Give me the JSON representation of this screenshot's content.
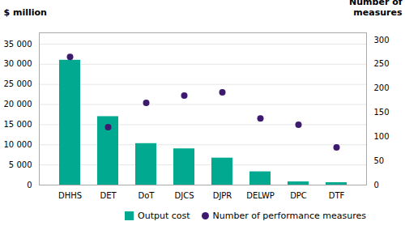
{
  "chart_data": {
    "type": "bar",
    "categories": [
      "DHHS",
      "DET",
      "DoT",
      "DJCS",
      "DJPR",
      "DELWP",
      "DPC",
      "DTF"
    ],
    "series": [
      {
        "name": "Output cost",
        "type": "bar",
        "color": "#00A98F",
        "values": [
          31000,
          17000,
          10300,
          9000,
          6700,
          3300,
          800,
          600
        ]
      },
      {
        "name": "Number of performance measures",
        "type": "scatter",
        "axis": "y2",
        "color": "#3D1A6E",
        "values": [
          265,
          120,
          170,
          185,
          192,
          138,
          125,
          78
        ]
      }
    ],
    "ylabel": "$ million",
    "y2label": "Number of\nmeasures",
    "ylim": [
      0,
      37800
    ],
    "yticks": [
      0,
      {
        "value": 5000,
        "label": "5 000"
      },
      {
        "value": 10000,
        "label": "10 000"
      },
      {
        "value": 15000,
        "label": "15 000"
      },
      {
        "value": 20000,
        "label": "20 000"
      },
      {
        "value": 25000,
        "label": "25 000"
      },
      {
        "value": 30000,
        "label": "30 000"
      },
      {
        "value": 35000,
        "label": "35 000"
      }
    ],
    "y2lim": [
      0,
      315
    ],
    "y2ticks": [
      0,
      50,
      100,
      150,
      200,
      250,
      300
    ],
    "grid": true,
    "legend": "bottom"
  }
}
